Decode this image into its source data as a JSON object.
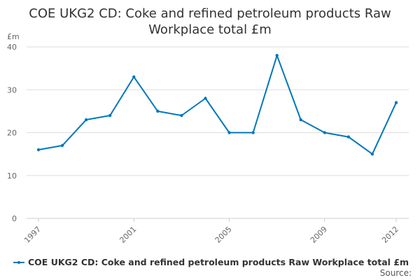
{
  "title_line1": "COE UKG2 CD: Coke and refined petroleum products Raw",
  "title_line2": "Workplace total £m",
  "source_label": "Source:",
  "colors": {
    "series": "#0077bb",
    "grid": "#dddddd",
    "text": "#333333"
  },
  "chart_data": {
    "type": "line",
    "title": "COE UKG2 CD: Coke and refined petroleum products Raw Workplace total £m",
    "ylabel": "£m",
    "xlabel": "",
    "ylim": [
      0,
      40
    ],
    "yticks": [
      0,
      10,
      20,
      30,
      40
    ],
    "xticks": [
      1997,
      2001,
      2005,
      2009,
      2012
    ],
    "grid": true,
    "legend_position": "bottom",
    "x": [
      1997,
      1998,
      1999,
      2000,
      2001,
      2002,
      2003,
      2004,
      2005,
      2006,
      2007,
      2008,
      2009,
      2010,
      2011,
      2012
    ],
    "series": [
      {
        "name": "COE UKG2 CD: Coke and refined petroleum products Raw Workplace total £m",
        "values": [
          16,
          17,
          23,
          24,
          33,
          25,
          24,
          28,
          20,
          20,
          38,
          23,
          20,
          19,
          15,
          27
        ]
      }
    ]
  }
}
